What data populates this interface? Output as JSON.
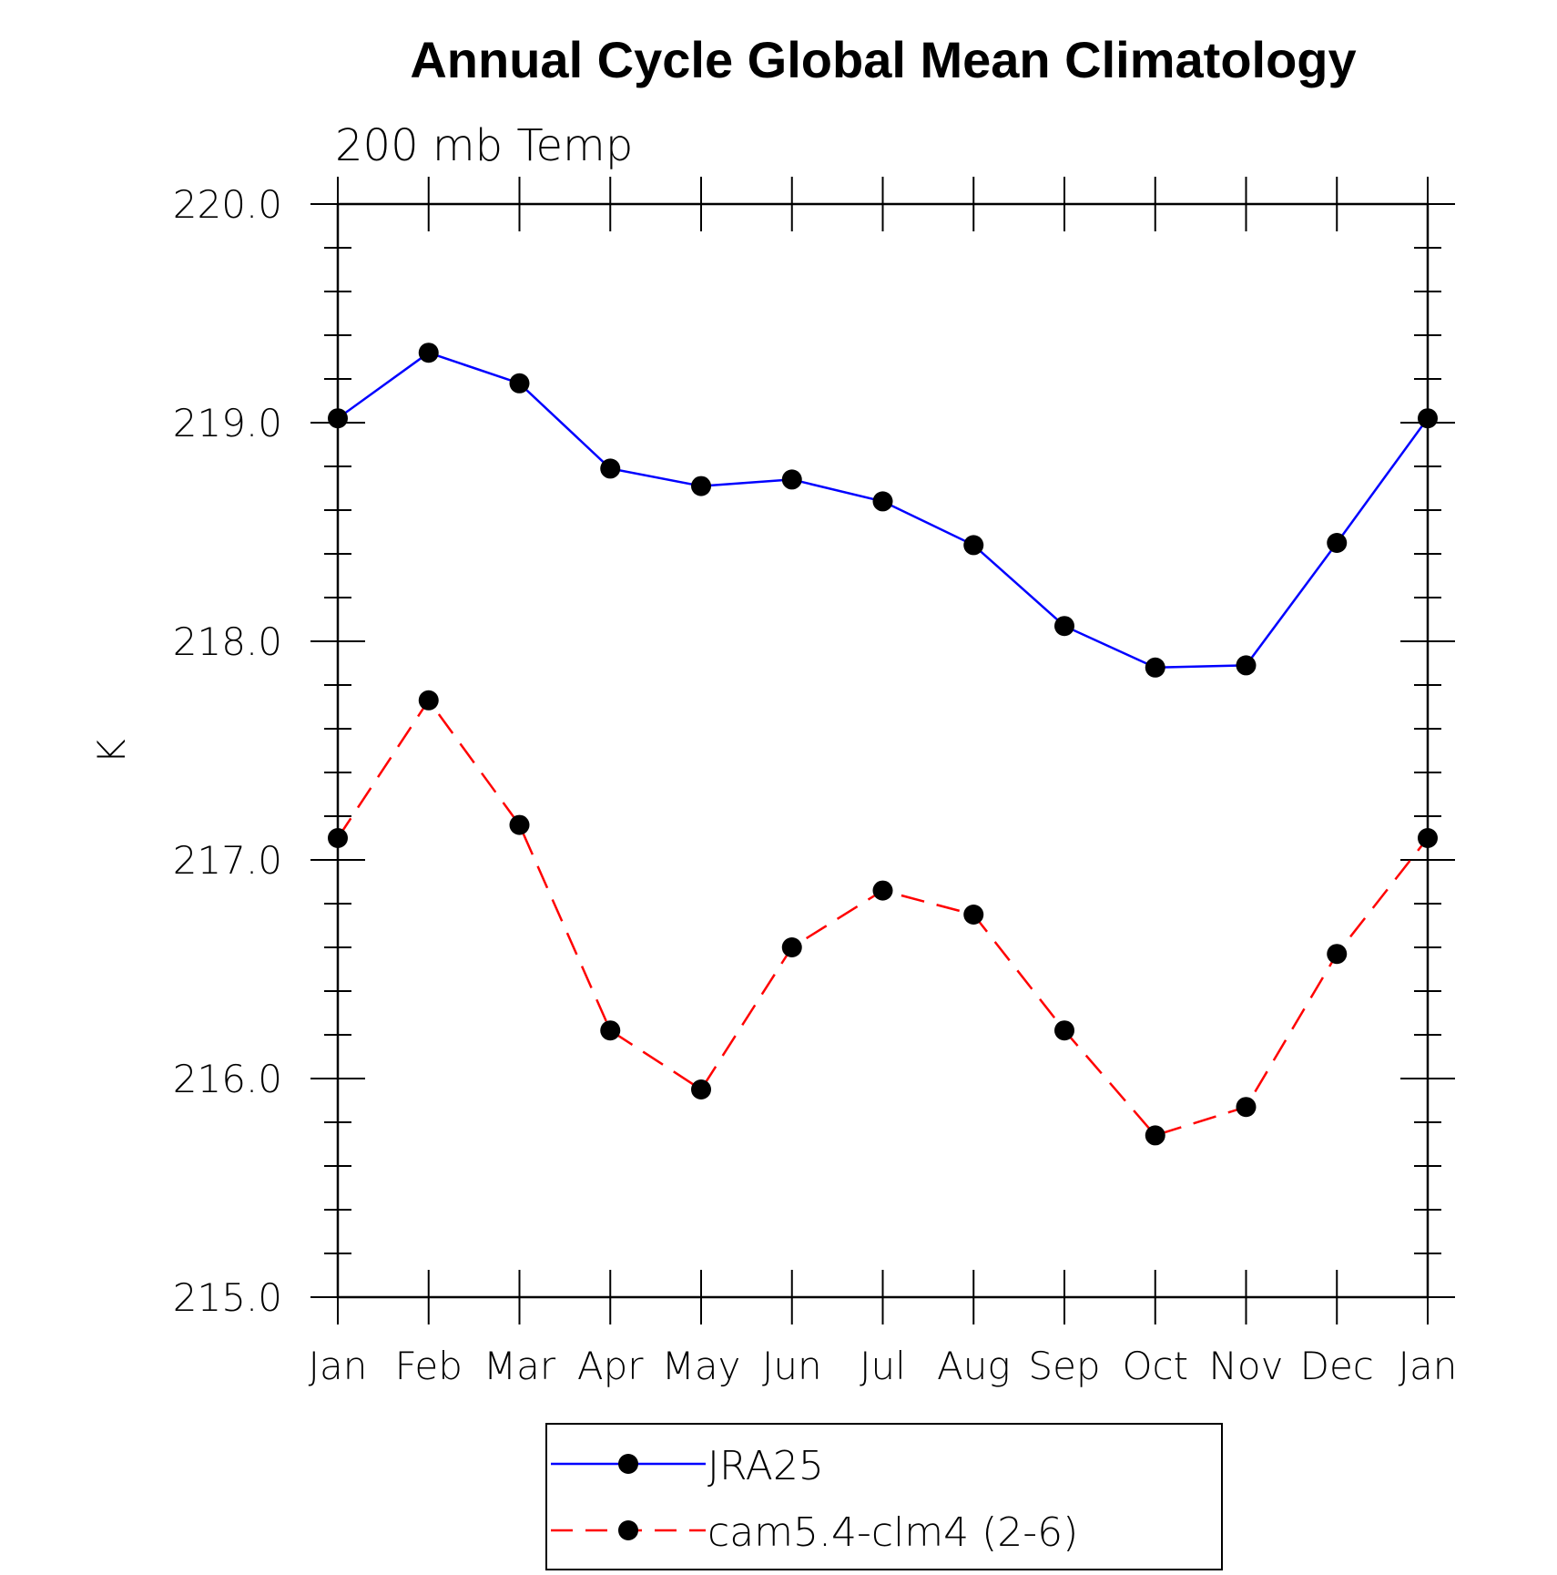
{
  "chart_data": {
    "type": "line",
    "title": "Annual Cycle Global Mean Climatology",
    "subtitle": "200 mb Temp",
    "ylabel": "K",
    "xlabel": "",
    "categories": [
      "Jan",
      "Feb",
      "Mar",
      "Apr",
      "May",
      "Jun",
      "Jul",
      "Aug",
      "Sep",
      "Oct",
      "Nov",
      "Dec",
      "Jan"
    ],
    "ylim": [
      215.0,
      220.0
    ],
    "yticks": [
      "215.0",
      "216.0",
      "217.0",
      "218.0",
      "219.0",
      "220.0"
    ],
    "grid": false,
    "legend_placement": "bottom-center",
    "series": [
      {
        "name": "JRA25",
        "color": "#0000ff",
        "line_style": "solid",
        "marker": "filled-circle",
        "values": [
          219.02,
          219.32,
          219.18,
          218.79,
          218.71,
          218.74,
          218.64,
          218.44,
          218.07,
          217.88,
          217.89,
          218.45,
          219.02
        ]
      },
      {
        "name": "cam5.4-clm4 (2-6)",
        "color": "#ff0000",
        "line_style": "dashed",
        "marker": "filled-circle",
        "values": [
          217.1,
          217.73,
          217.16,
          216.22,
          215.95,
          216.6,
          216.86,
          216.75,
          216.22,
          215.74,
          215.87,
          216.57,
          217.1
        ]
      }
    ]
  }
}
